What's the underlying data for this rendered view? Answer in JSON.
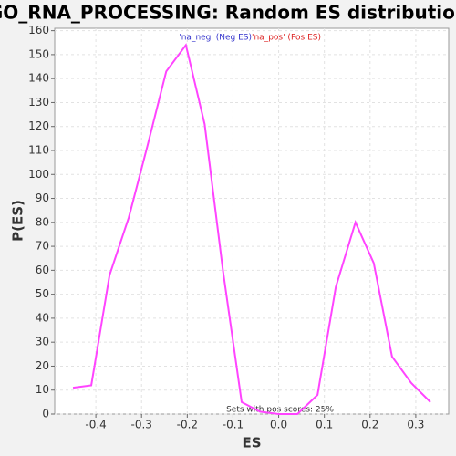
{
  "chart_data": {
    "type": "line",
    "title": "GO_RNA_PROCESSING: Random ES distribution",
    "x_label": "ES",
    "y_label": "P(ES)",
    "annotation": "Sets with pos scores: 25%",
    "legend": [
      {
        "label": "'na_neg' (Neg ES)",
        "color": "#3333cc"
      },
      {
        "label": "'na_pos' (Pos ES)",
        "color": "#dd2222"
      }
    ],
    "x": [
      -0.45,
      -0.41,
      -0.37,
      -0.328,
      -0.287,
      -0.246,
      -0.203,
      -0.162,
      -0.122,
      -0.081,
      -0.041,
      0.0,
      0.041,
      0.085,
      0.125,
      0.168,
      0.208,
      0.248,
      0.29,
      0.332
    ],
    "values": [
      11,
      12,
      58,
      82,
      112,
      143,
      154,
      121,
      60,
      5,
      1,
      0,
      0,
      8,
      53,
      80,
      63,
      24,
      13,
      5
    ],
    "color": "#ff44ff",
    "xlim": [
      -0.49,
      0.372
    ],
    "ylim": [
      0,
      161
    ],
    "xticks": [
      -0.4,
      -0.3,
      -0.2,
      -0.1,
      {
        "value": 0,
        "label": "0.0"
      },
      0.1,
      0.2,
      0.3
    ],
    "yticks": [
      0,
      10,
      20,
      30,
      40,
      50,
      60,
      70,
      80,
      90,
      100,
      110,
      120,
      130,
      140,
      150,
      160
    ],
    "grid": true
  }
}
